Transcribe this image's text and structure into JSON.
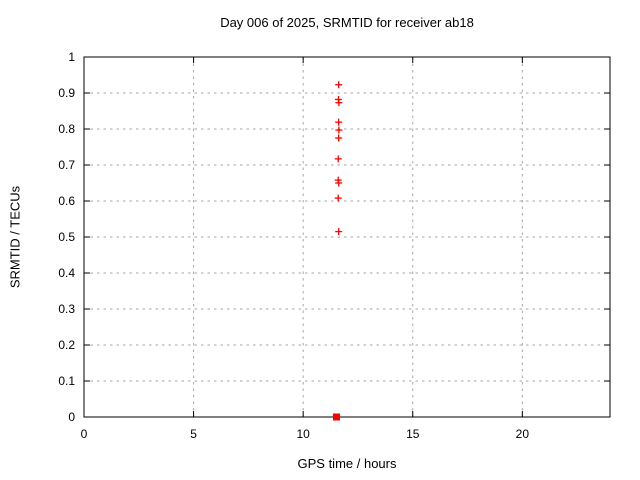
{
  "title": "Day 006 of 2025, SRMTID for receiver ab18",
  "chart_data": {
    "type": "scatter",
    "title": "Day 006 of 2025, SRMTID for receiver ab18",
    "xlabel": "GPS time / hours",
    "ylabel": "SRMTID / TECUs",
    "xlim": [
      0,
      24
    ],
    "ylim": [
      0,
      1
    ],
    "xticks": [
      {
        "value": 0,
        "label": "0"
      },
      {
        "value": 5,
        "label": "5"
      },
      {
        "value": 10,
        "label": "10"
      },
      {
        "value": 15,
        "label": "15"
      },
      {
        "value": 20,
        "label": "20"
      }
    ],
    "yticks": [
      {
        "value": 0,
        "label": "0"
      },
      {
        "value": 0.1,
        "label": "0.1"
      },
      {
        "value": 0.2,
        "label": "0.2"
      },
      {
        "value": 0.3,
        "label": "0.3"
      },
      {
        "value": 0.4,
        "label": "0.4"
      },
      {
        "value": 0.5,
        "label": "0.5"
      },
      {
        "value": 0.6,
        "label": "0.6"
      },
      {
        "value": 0.7,
        "label": "0.7"
      },
      {
        "value": 0.8,
        "label": "0.8"
      },
      {
        "value": 1,
        "label": "1"
      }
    ],
    "ytick_extra": {
      "value": 0.9,
      "label": "0.9"
    },
    "grid": true,
    "grid_color": "#a6a6a6",
    "border_color": "#000000",
    "series": [
      {
        "name": "srmtid-points",
        "marker": "plus",
        "color": "#ff0000",
        "points": [
          [
            11.62,
            0.923
          ],
          [
            11.61,
            0.882
          ],
          [
            11.63,
            0.873
          ],
          [
            11.62,
            0.819
          ],
          [
            11.63,
            0.797
          ],
          [
            11.62,
            0.775
          ],
          [
            11.6,
            0.717
          ],
          [
            11.6,
            0.658
          ],
          [
            11.62,
            0.65
          ],
          [
            11.6,
            0.608
          ],
          [
            11.62,
            0.515
          ]
        ]
      },
      {
        "name": "zero-level-point",
        "marker": "filled-square",
        "color": "#ff0000",
        "points": [
          [
            11.52,
            0.0
          ]
        ]
      }
    ]
  }
}
